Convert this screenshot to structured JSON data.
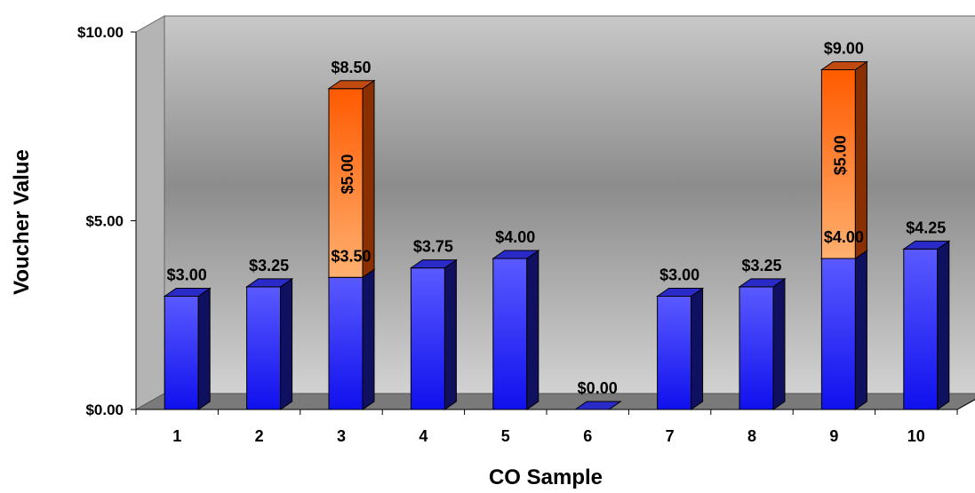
{
  "chart_data": {
    "type": "bar",
    "stacked": true,
    "three_d": true,
    "xlabel": "CO Sample",
    "ylabel": "Voucher Value",
    "ylim": [
      0,
      10
    ],
    "yticks": [
      0,
      5,
      10
    ],
    "ytick_labels": [
      "$0.00",
      "$5.00",
      "$10.00"
    ],
    "categories": [
      "1",
      "2",
      "3",
      "4",
      "5",
      "6",
      "7",
      "8",
      "9",
      "10"
    ],
    "series": [
      {
        "color": "#2a2aff",
        "values": [
          3.0,
          3.25,
          3.5,
          3.75,
          4.0,
          0.0,
          3.0,
          3.25,
          4.0,
          4.25
        ],
        "labels": [
          "$3.00",
          "$3.25",
          "$3.50",
          "$3.75",
          "$4.00",
          "$0.00",
          "$3.00",
          "$3.25",
          "$4.00",
          "$4.25"
        ]
      },
      {
        "color": "#ff6a10",
        "values": [
          0,
          0,
          5.0,
          0,
          0,
          0,
          0,
          0,
          5.0,
          0
        ],
        "labels": [
          "",
          "",
          "$5.00",
          "",
          "",
          "",
          "",
          "",
          "$5.00",
          ""
        ]
      }
    ],
    "totals": [
      {
        "category": "3",
        "value": 8.5,
        "label": "$8.50"
      },
      {
        "category": "9",
        "value": 9.0,
        "label": "$9.00"
      }
    ],
    "grid": false,
    "legend": "none",
    "wall_color": "gray-gradient"
  }
}
